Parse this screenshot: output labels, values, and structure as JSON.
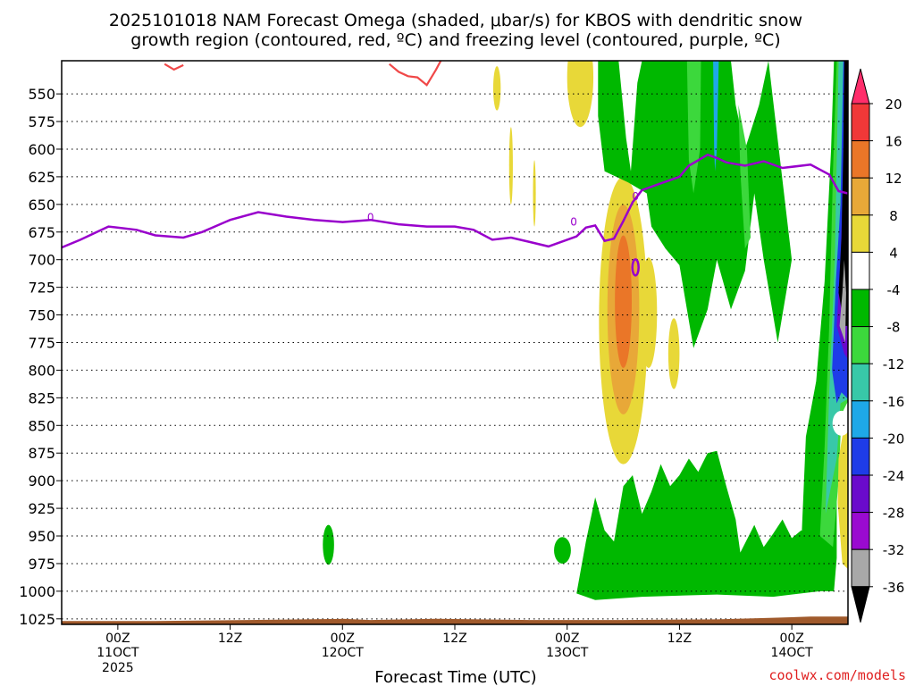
{
  "chart_data": {
    "type": "heatmap",
    "title_lines": [
      "2025101018 NAM Forecast Omega (shaded, μbar/s) for KBOS with dendritic snow",
      "growth region (contoured, red, ºC) and freezing level (contoured, purple, ºC)"
    ],
    "xlabel": "Forecast Time (UTC)",
    "credit": "coolwx.com/models",
    "y_ticks": [
      "550",
      "575",
      "600",
      "625",
      "650",
      "675",
      "700",
      "725",
      "750",
      "775",
      "800",
      "825",
      "850",
      "875",
      "900",
      "925",
      "950",
      "975",
      "1000",
      "1025"
    ],
    "x_ticks": [
      {
        "label": "00Z",
        "sub": "11OCT",
        "sub2": "2025",
        "h": 6
      },
      {
        "label": "12Z",
        "sub": "",
        "sub2": "",
        "h": 18
      },
      {
        "label": "00Z",
        "sub": "12OCT",
        "sub2": "",
        "h": 30
      },
      {
        "label": "12Z",
        "sub": "",
        "sub2": "",
        "h": 42
      },
      {
        "label": "00Z",
        "sub": "13OCT",
        "sub2": "",
        "h": 54
      },
      {
        "label": "12Z",
        "sub": "",
        "sub2": "",
        "h": 66
      },
      {
        "label": "00Z",
        "sub": "14OCT",
        "sub2": "",
        "h": 78
      }
    ],
    "x_range_hours": [
      0,
      84
    ],
    "y_range_hPa": [
      520,
      1030
    ],
    "colorbar": {
      "ticks": [
        "20",
        "16",
        "12",
        "8",
        "4",
        "-4",
        "-8",
        "-12",
        "-16",
        "-20",
        "-24",
        "-28",
        "-32",
        "-36"
      ],
      "colors": [
        "#ff2e6b",
        "#f03838",
        "#ea7628",
        "#e8a838",
        "#e8d838",
        "#ffffff",
        "#00b800",
        "#3cd83c",
        "#38c8a8",
        "#1ea8e8",
        "#1e3ce8",
        "#6a0acc",
        "#9a0ad0",
        "#a8a8a8",
        "#000000"
      ]
    },
    "freezing_level": {
      "label": "0",
      "color": "#9900cc",
      "points": [
        [
          0,
          689
        ],
        [
          2,
          682
        ],
        [
          5,
          670
        ],
        [
          8,
          673
        ],
        [
          10,
          678
        ],
        [
          13,
          680
        ],
        [
          15,
          675
        ],
        [
          18,
          664
        ],
        [
          21,
          657
        ],
        [
          24,
          661
        ],
        [
          27,
          664
        ],
        [
          30,
          666
        ],
        [
          33,
          664
        ],
        [
          36,
          668
        ],
        [
          39,
          670
        ],
        [
          42,
          670
        ],
        [
          44,
          673
        ],
        [
          46,
          682
        ],
        [
          48,
          680
        ],
        [
          50,
          684
        ],
        [
          52,
          688
        ],
        [
          54,
          682
        ],
        [
          55,
          679
        ],
        [
          56,
          671
        ],
        [
          57,
          669
        ],
        [
          58,
          683
        ],
        [
          59,
          681
        ],
        [
          60,
          665
        ],
        [
          61,
          648
        ],
        [
          62,
          637
        ],
        [
          64,
          631
        ],
        [
          66,
          625
        ],
        [
          67,
          615
        ],
        [
          68,
          610
        ],
        [
          69,
          605
        ],
        [
          70,
          608
        ],
        [
          71,
          612
        ],
        [
          73,
          615
        ],
        [
          75,
          611
        ],
        [
          77,
          617
        ],
        [
          80,
          614
        ],
        [
          82,
          623
        ],
        [
          83,
          638
        ],
        [
          84,
          640
        ]
      ]
    },
    "dendritic_region": {
      "color": "#f04848",
      "segments": [
        [
          [
            11,
            523
          ],
          [
            12,
            528
          ],
          [
            13,
            524
          ]
        ],
        [
          [
            35,
            523
          ],
          [
            36,
            530
          ],
          [
            37,
            534
          ],
          [
            38,
            535
          ],
          [
            39,
            542
          ],
          [
            40,
            528
          ],
          [
            40.5,
            520
          ]
        ]
      ]
    },
    "omega_bands": [
      {
        "level": "4",
        "color": "#e8d838"
      },
      {
        "level": "8",
        "color": "#e8a838"
      },
      {
        "level": "12",
        "color": "#ea7628"
      },
      {
        "level": "-4",
        "color": "#00b800"
      },
      {
        "level": "-8",
        "color": "#3cd83c"
      },
      {
        "level": "-12",
        "color": "#38c8a8"
      },
      {
        "level": "-16",
        "color": "#1ea8e8"
      },
      {
        "level": "-20",
        "color": "#1e3ce8"
      },
      {
        "level": "-28",
        "color": "#6a0acc"
      },
      {
        "level": "-32",
        "color": "#a8a8a8"
      },
      {
        "level": "-36",
        "color": "#000000"
      }
    ],
    "ground_color": "#a05a2c"
  }
}
